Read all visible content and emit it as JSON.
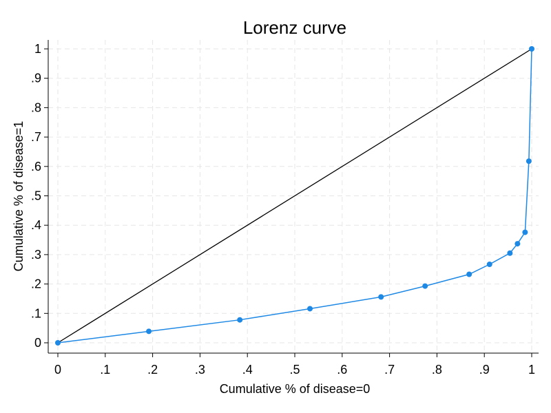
{
  "chart_data": {
    "type": "line",
    "title": "Lorenz curve",
    "xlabel": "Cumulative % of disease=0",
    "ylabel": "Cumulative % of disease=1",
    "xlim": [
      0,
      1
    ],
    "ylim": [
      0,
      1
    ],
    "xticks": [
      0,
      0.1,
      0.2,
      0.3,
      0.4,
      0.5,
      0.6,
      0.7,
      0.8,
      0.9,
      1
    ],
    "xtick_labels": [
      "0",
      ".1",
      ".2",
      ".3",
      ".4",
      ".5",
      ".6",
      ".7",
      ".8",
      ".9",
      "1"
    ],
    "yticks": [
      0,
      0.1,
      0.2,
      0.3,
      0.4,
      0.5,
      0.6,
      0.7,
      0.8,
      0.9,
      1
    ],
    "ytick_labels": [
      "0",
      ".1",
      ".2",
      ".3",
      ".4",
      ".5",
      ".6",
      ".7",
      ".8",
      ".9",
      "1"
    ],
    "grid": true,
    "series": [
      {
        "role": "equality-line",
        "color": "#000000",
        "markers": false,
        "x": [
          0,
          1
        ],
        "y": [
          0,
          1
        ]
      },
      {
        "role": "lorenz-curve",
        "color": "#1e88e5",
        "markers": true,
        "x": [
          0,
          0.192,
          0.384,
          0.532,
          0.682,
          0.775,
          0.868,
          0.911,
          0.954,
          0.97,
          0.986,
          0.994,
          1.0
        ],
        "y": [
          0,
          0.039,
          0.078,
          0.116,
          0.156,
          0.193,
          0.233,
          0.267,
          0.305,
          0.337,
          0.376,
          0.618,
          1.0
        ]
      }
    ]
  }
}
